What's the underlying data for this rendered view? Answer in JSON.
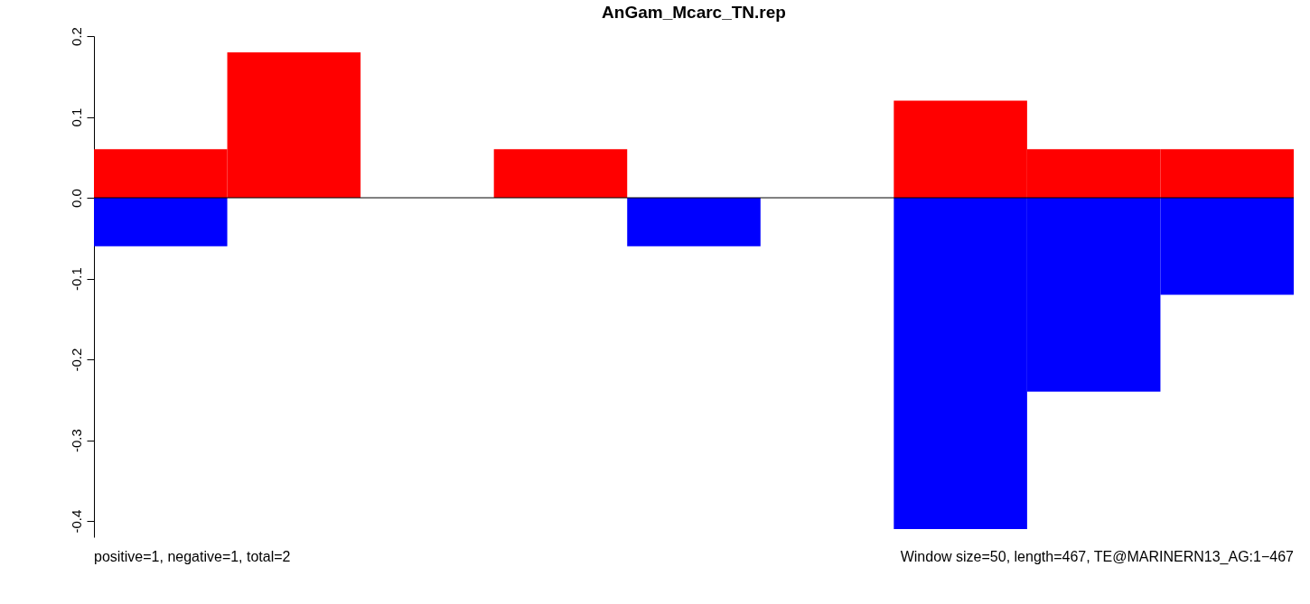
{
  "chart_data": {
    "type": "bar",
    "title": "AnGam_Mcarc_TN.rep",
    "categories": [
      null,
      null,
      null,
      null,
      null,
      null,
      null,
      null,
      null
    ],
    "series": [
      {
        "color": "#ff0000",
        "values": [
          0.06,
          0.18,
          0,
          0.06,
          0,
          0,
          0.12,
          0.06,
          0.06
        ]
      },
      {
        "color": "#0000ff",
        "values": [
          -0.06,
          0,
          0,
          0,
          -0.06,
          0,
          -0.41,
          -0.24,
          -0.12
        ]
      }
    ],
    "stacked": true,
    "ylim": [
      -0.42,
      0.2
    ],
    "yticks": [
      {
        "value": -0.4,
        "label": "-0.4"
      },
      {
        "value": -0.3,
        "label": "-0.3"
      },
      {
        "value": -0.2,
        "label": "-0.2"
      },
      {
        "value": -0.1,
        "label": "-0.1"
      },
      {
        "value": 0,
        "label": "0.0"
      },
      {
        "value": 0.1,
        "label": "0.1"
      },
      {
        "value": 0.2,
        "label": "0.2"
      }
    ],
    "tick_labels": "y",
    "grid": false,
    "legend": false,
    "ref_lines": [
      {
        "axis": "y",
        "value": 0,
        "color": "#000000"
      }
    ],
    "annotations": [
      "positive=1, negative=1, total=2",
      "Window size=50, length=467, TE@MARINERN13_AG:1−467"
    ]
  }
}
